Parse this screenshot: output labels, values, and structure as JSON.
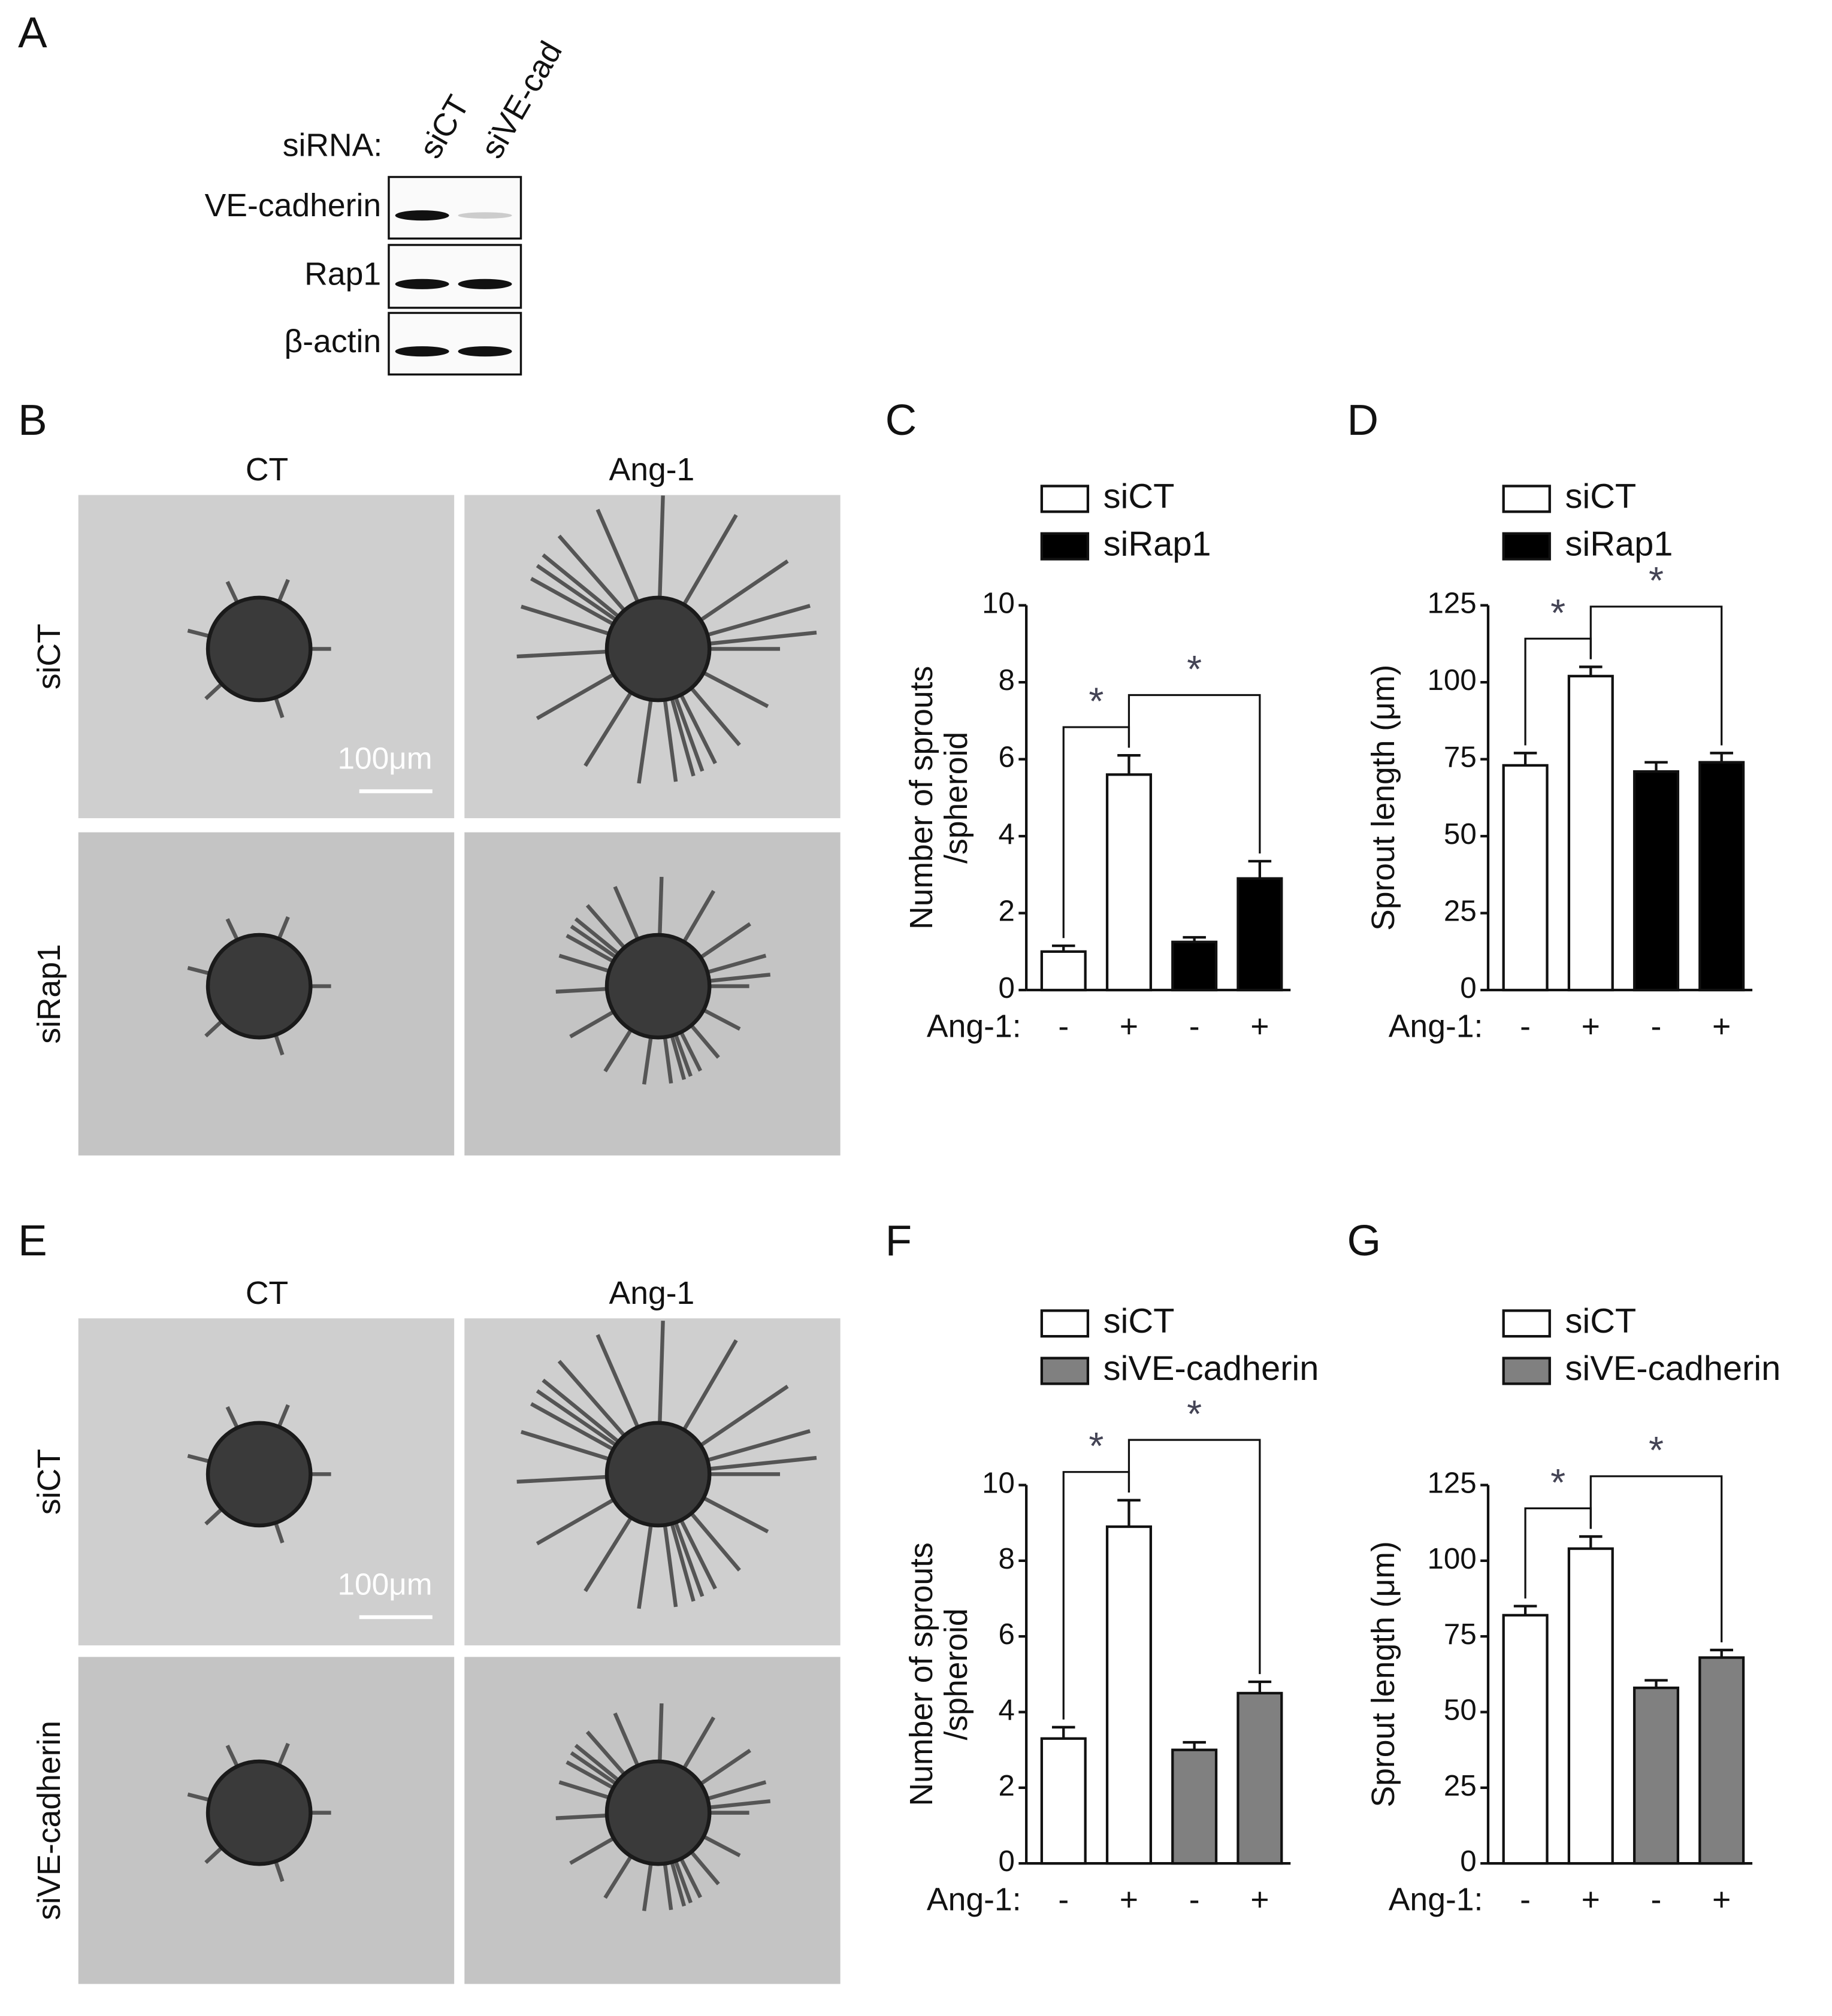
{
  "panel_a": {
    "label": "A",
    "prefix": "siRNA:",
    "lanes": [
      "siCT",
      "siVE-cad"
    ],
    "rows": [
      "VE-cadherin",
      "Rap1",
      "β-actin"
    ]
  },
  "panel_b": {
    "label": "B",
    "columns": [
      "CT",
      "Ang-1"
    ],
    "rows": [
      "siCT",
      "siRap1"
    ],
    "scale_bar": "100μm"
  },
  "panel_e": {
    "label": "E",
    "columns": [
      "CT",
      "Ang-1"
    ],
    "rows": [
      "siCT",
      "siVE-cadherin"
    ],
    "scale_bar": "100μm"
  },
  "chart_data": [
    {
      "type": "bar",
      "panel_label": "C",
      "y_label": [
        "Number of sprouts",
        "/spheroid"
      ],
      "x_label": "Ang-1:",
      "categories": [
        "-",
        "+",
        "-",
        "+"
      ],
      "series": [
        {
          "name": "siCT",
          "color": "#ffffff",
          "values": [
            1.0,
            5.6,
            null,
            null
          ],
          "errors": [
            0.15,
            0.5,
            null,
            null
          ]
        },
        {
          "name": "siRap1",
          "color": "#000000",
          "values": [
            null,
            null,
            1.25,
            2.9
          ],
          "errors": [
            null,
            null,
            0.12,
            0.45
          ]
        }
      ],
      "ylim": [
        0,
        10
      ],
      "yticks": [
        0,
        2,
        4,
        6,
        8,
        10
      ],
      "annotations": [
        "*",
        "*"
      ]
    },
    {
      "type": "bar",
      "panel_label": "D",
      "y_label": [
        "Sprout length (μm)"
      ],
      "x_label": "Ang-1:",
      "categories": [
        "-",
        "+",
        "-",
        "+"
      ],
      "series": [
        {
          "name": "siCT",
          "color": "#ffffff",
          "values": [
            73,
            102,
            null,
            null
          ],
          "errors": [
            4,
            3,
            null,
            null
          ]
        },
        {
          "name": "siRap1",
          "color": "#000000",
          "values": [
            null,
            null,
            71,
            74
          ],
          "errors": [
            null,
            null,
            3,
            3
          ]
        }
      ],
      "ylim": [
        0,
        125
      ],
      "yticks": [
        0,
        25,
        50,
        75,
        100,
        125
      ],
      "annotations": [
        "*",
        "*"
      ]
    },
    {
      "type": "bar",
      "panel_label": "F",
      "y_label": [
        "Number of sprouts",
        "/spheroid"
      ],
      "x_label": "Ang-1:",
      "categories": [
        "-",
        "+",
        "-",
        "+"
      ],
      "series": [
        {
          "name": "siCT",
          "color": "#ffffff",
          "values": [
            3.3,
            8.9,
            null,
            null
          ],
          "errors": [
            0.3,
            0.7,
            null,
            null
          ]
        },
        {
          "name": "siVE-cadherin",
          "color": "#808080",
          "values": [
            null,
            null,
            3.0,
            4.5
          ],
          "errors": [
            null,
            null,
            0.2,
            0.3
          ]
        }
      ],
      "ylim": [
        0,
        10
      ],
      "yticks": [
        0,
        2,
        4,
        6,
        8,
        10
      ],
      "annotations": [
        "*",
        "*"
      ]
    },
    {
      "type": "bar",
      "panel_label": "G",
      "y_label": [
        "Sprout length (μm)"
      ],
      "x_label": "Ang-1:",
      "categories": [
        "-",
        "+",
        "-",
        "+"
      ],
      "series": [
        {
          "name": "siCT",
          "color": "#ffffff",
          "values": [
            82,
            104,
            null,
            null
          ],
          "errors": [
            3,
            4,
            null,
            null
          ]
        },
        {
          "name": "siVE-cadherin",
          "color": "#808080",
          "values": [
            null,
            null,
            58,
            68
          ],
          "errors": [
            null,
            null,
            2.5,
            2.5
          ]
        }
      ],
      "ylim": [
        0,
        125
      ],
      "yticks": [
        0,
        25,
        50,
        75,
        100,
        125
      ],
      "annotations": [
        "*",
        "*"
      ]
    }
  ]
}
